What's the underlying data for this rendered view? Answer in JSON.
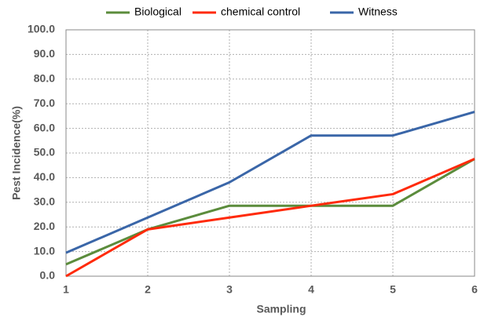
{
  "chart_data": {
    "type": "line",
    "x_label": "Sampling",
    "y_label": "Pest Incidence(%)",
    "x": [
      1,
      2,
      3,
      4,
      5,
      6
    ],
    "series": [
      {
        "name": "Biological",
        "color": "#5b8c3c",
        "values": [
          4.8,
          19.0,
          28.6,
          28.6,
          28.6,
          47.6
        ]
      },
      {
        "name": "chemical control",
        "color": "#ff2a0a",
        "values": [
          0,
          19.0,
          23.8,
          28.6,
          33.3,
          47.6
        ]
      },
      {
        "name": "Witness",
        "color": "#3a66a8",
        "values": [
          9.5,
          23.8,
          38.1,
          57.1,
          57.1,
          66.7
        ]
      }
    ],
    "xlim": [
      1,
      6
    ],
    "xticks": [
      1,
      2,
      3,
      4,
      5,
      6
    ],
    "ylim": [
      0,
      100
    ],
    "yticks": [
      {
        "value": 0,
        "label": "0.0"
      },
      {
        "value": 10,
        "label": "10.0"
      },
      {
        "value": 20,
        "label": "20.0"
      },
      {
        "value": 30,
        "label": "30.0"
      },
      {
        "value": 40,
        "label": "40.0"
      },
      {
        "value": 50,
        "label": "50.0"
      },
      {
        "value": 60,
        "label": "60.0"
      },
      {
        "value": 70,
        "label": "70.0"
      },
      {
        "value": 80,
        "label": "80.0"
      },
      {
        "value": 90,
        "label": "90.0"
      },
      {
        "value": 100,
        "label": "100.0"
      }
    ],
    "grid": true,
    "legend": "top"
  }
}
